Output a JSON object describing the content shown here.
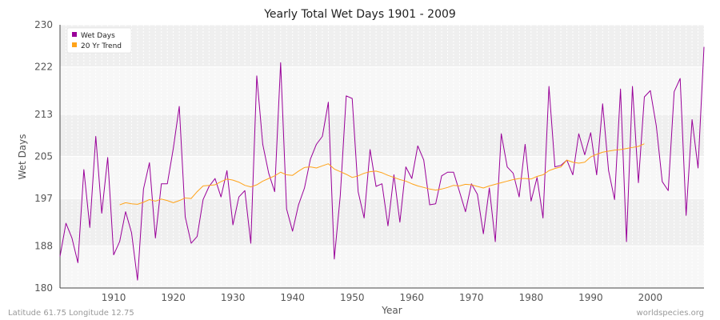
{
  "chart_data": {
    "type": "line",
    "title": "Yearly Total Wet Days 1901 - 2009",
    "xlabel": "Year",
    "ylabel": "Wet Days",
    "xlim": [
      1901,
      2009
    ],
    "ylim": [
      180,
      230
    ],
    "yticks": [
      180,
      188,
      197,
      205,
      213,
      222,
      230
    ],
    "xticks": [
      1910,
      1920,
      1930,
      1940,
      1950,
      1960,
      1970,
      1980,
      1990,
      2000
    ],
    "grid": true,
    "legend_position": "top-left",
    "series": [
      {
        "name": "Wet Days",
        "color": "#990099",
        "x": [
          1901,
          1902,
          1903,
          1904,
          1905,
          1906,
          1907,
          1908,
          1909,
          1910,
          1911,
          1912,
          1913,
          1914,
          1915,
          1916,
          1917,
          1918,
          1919,
          1920,
          1921,
          1922,
          1923,
          1924,
          1925,
          1926,
          1927,
          1928,
          1929,
          1930,
          1931,
          1932,
          1933,
          1934,
          1935,
          1936,
          1937,
          1938,
          1939,
          1940,
          1941,
          1942,
          1943,
          1944,
          1945,
          1946,
          1947,
          1948,
          1949,
          1950,
          1951,
          1952,
          1953,
          1954,
          1955,
          1956,
          1957,
          1958,
          1959,
          1960,
          1961,
          1962,
          1963,
          1964,
          1965,
          1966,
          1967,
          1968,
          1969,
          1970,
          1971,
          1972,
          1973,
          1974,
          1975,
          1976,
          1977,
          1978,
          1979,
          1980,
          1981,
          1982,
          1983,
          1984,
          1985,
          1986,
          1987,
          1988,
          1989,
          1990,
          1991,
          1992,
          1993,
          1994,
          1995,
          1996,
          1997,
          1998,
          1999,
          2000,
          2001,
          2002,
          2003,
          2004,
          2005,
          2006,
          2007,
          2008,
          2009
        ],
        "y": [
          186,
          192.3,
          189.5,
          184.8,
          202.5,
          191.5,
          208.8,
          194.2,
          204.8,
          186.3,
          188.8,
          194.5,
          190.5,
          181.5,
          198.8,
          203.8,
          189.5,
          199.8,
          199.8,
          206.5,
          214.5,
          193.5,
          188.5,
          189.8,
          196.8,
          199.3,
          200.8,
          197.3,
          202.3,
          192,
          197.3,
          198.5,
          188.5,
          220.3,
          207.3,
          201.8,
          198.3,
          222.8,
          195,
          190.8,
          195.8,
          199,
          204.5,
          207.3,
          208.8,
          215.3,
          185.5,
          197.5,
          216.5,
          216,
          198.3,
          193.3,
          206.3,
          199.3,
          199.8,
          191.8,
          201.5,
          192.5,
          203,
          200.8,
          207,
          204.3,
          195.8,
          196,
          201.3,
          202,
          202,
          198.3,
          194.5,
          199.8,
          197.8,
          190.3,
          199,
          188.8,
          209.3,
          203,
          201.8,
          197.3,
          207.3,
          196.5,
          201,
          193.3,
          218.3,
          203,
          203.3,
          204.3,
          201.5,
          209.3,
          205.3,
          209.5,
          201.5,
          215,
          202.3,
          196.8,
          217.8,
          188.8,
          218.3,
          200,
          216.3,
          217.5,
          210.8,
          200.2,
          198.5,
          217.3,
          219.8,
          193.8,
          212,
          202.8,
          225.8
        ]
      },
      {
        "name": "20 Yr Trend",
        "color": "#ffa31a",
        "x": [
          1911,
          1912,
          1913,
          1914,
          1915,
          1916,
          1917,
          1918,
          1919,
          1920,
          1921,
          1922,
          1923,
          1924,
          1925,
          1926,
          1927,
          1928,
          1929,
          1930,
          1931,
          1932,
          1933,
          1934,
          1935,
          1936,
          1937,
          1938,
          1939,
          1940,
          1941,
          1942,
          1943,
          1944,
          1945,
          1946,
          1947,
          1948,
          1949,
          1950,
          1951,
          1952,
          1953,
          1954,
          1955,
          1956,
          1957,
          1958,
          1959,
          1960,
          1961,
          1962,
          1963,
          1964,
          1965,
          1966,
          1967,
          1968,
          1969,
          1970,
          1971,
          1972,
          1973,
          1974,
          1975,
          1976,
          1977,
          1978,
          1979,
          1980,
          1981,
          1982,
          1983,
          1984,
          1985,
          1986,
          1987,
          1988,
          1989,
          1990,
          1991,
          1992,
          1993,
          1994,
          1995,
          1996,
          1997,
          1998,
          1999
        ],
        "y": [
          195.8,
          196.2,
          196,
          195.9,
          196.3,
          196.8,
          196.5,
          196.9,
          196.6,
          196.2,
          196.6,
          197.1,
          197,
          198.3,
          199.4,
          199.5,
          199.6,
          200.2,
          200.7,
          200.5,
          200.1,
          199.5,
          199.2,
          199.6,
          200.3,
          200.8,
          201.3,
          202,
          201.5,
          201.4,
          202.2,
          202.9,
          203,
          202.8,
          203.2,
          203.6,
          202.6,
          202.1,
          201.6,
          201,
          201.3,
          201.8,
          202.1,
          202.2,
          201.9,
          201.4,
          201,
          200.6,
          200.3,
          199.8,
          199.4,
          199.1,
          198.8,
          198.6,
          198.8,
          199.1,
          199.5,
          199.4,
          199.7,
          199.6,
          199.3,
          199,
          199.4,
          199.7,
          200,
          200.3,
          200.6,
          200.8,
          200.8,
          200.7,
          201.2,
          201.5,
          202.3,
          202.7,
          203,
          204.3,
          203.9,
          203.7,
          203.9,
          204.9,
          205.4,
          205.8,
          206,
          206.2,
          206.3,
          206.5,
          206.7,
          206.9,
          207.4
        ]
      }
    ]
  },
  "footer": {
    "left": "Latitude 61.75 Longitude 12.75",
    "right": "worldspecies.org"
  }
}
